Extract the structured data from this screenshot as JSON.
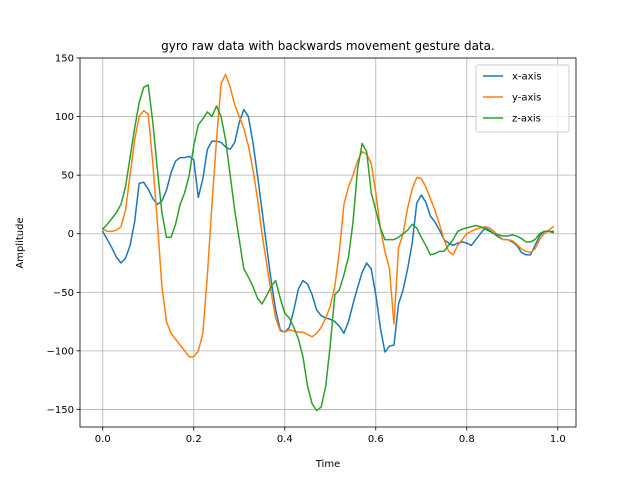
{
  "chart_data": {
    "type": "line",
    "title": "gyro raw data with backwards movement gesture data.",
    "xlabel": "Time",
    "ylabel": "Amplitude",
    "xlim": [
      -0.05,
      1.04
    ],
    "ylim": [
      -165,
      150
    ],
    "xticks": [
      0.0,
      0.2,
      0.4,
      0.6,
      0.8,
      1.0
    ],
    "xtick_labels": [
      "0.0",
      "0.2",
      "0.4",
      "0.6",
      "0.8",
      "1.0"
    ],
    "yticks": [
      -150,
      -100,
      -50,
      0,
      50,
      100,
      150
    ],
    "ytick_labels": [
      "−150",
      "−100",
      "−50",
      "0",
      "50",
      "100",
      "150"
    ],
    "grid": true,
    "legend": "top-right",
    "x": [
      0.0,
      0.01,
      0.02,
      0.03,
      0.04,
      0.05,
      0.06,
      0.07,
      0.08,
      0.09,
      0.1,
      0.11,
      0.12,
      0.13,
      0.14,
      0.15,
      0.16,
      0.17,
      0.18,
      0.19,
      0.2,
      0.21,
      0.22,
      0.23,
      0.24,
      0.25,
      0.26,
      0.27,
      0.28,
      0.29,
      0.3,
      0.31,
      0.32,
      0.33,
      0.34,
      0.35,
      0.36,
      0.37,
      0.38,
      0.39,
      0.4,
      0.41,
      0.42,
      0.43,
      0.44,
      0.45,
      0.46,
      0.47,
      0.48,
      0.49,
      0.5,
      0.51,
      0.52,
      0.53,
      0.54,
      0.55,
      0.56,
      0.57,
      0.58,
      0.59,
      0.6,
      0.61,
      0.62,
      0.63,
      0.64,
      0.65,
      0.66,
      0.67,
      0.68,
      0.69,
      0.7,
      0.71,
      0.72,
      0.73,
      0.74,
      0.75,
      0.76,
      0.77,
      0.78,
      0.79,
      0.8,
      0.81,
      0.82,
      0.83,
      0.84,
      0.85,
      0.86,
      0.87,
      0.88,
      0.89,
      0.9,
      0.91,
      0.92,
      0.93,
      0.94,
      0.95,
      0.96,
      0.97,
      0.98,
      0.99
    ],
    "series": [
      {
        "name": "x-axis",
        "color": "#1f77b4",
        "values": [
          2,
          -5,
          -12,
          -20,
          -25,
          -21,
          -10,
          10,
          43,
          44,
          38,
          30,
          25,
          28,
          37,
          52,
          62,
          65,
          65,
          66,
          63,
          31,
          47,
          72,
          79,
          79,
          78,
          74,
          72,
          78,
          95,
          106,
          100,
          78,
          50,
          20,
          -10,
          -40,
          -65,
          -82,
          -84,
          -80,
          -65,
          -47,
          -40,
          -43,
          -52,
          -65,
          -70,
          -72,
          -73,
          -75,
          -79,
          -85,
          -75,
          -60,
          -46,
          -33,
          -25,
          -30,
          -52,
          -80,
          -101,
          -96,
          -95,
          -60,
          -48,
          -30,
          -8,
          26,
          33,
          27,
          15,
          10,
          3,
          -5,
          -8,
          -10,
          -8,
          -7,
          -8,
          -10,
          -5,
          0,
          5,
          3,
          0,
          -3,
          -5,
          -5,
          -7,
          -10,
          -16,
          -18,
          -18,
          -10,
          -2,
          2,
          2,
          2
        ]
      },
      {
        "name": "y-axis",
        "color": "#ff7f0e",
        "values": [
          4,
          2,
          2,
          3,
          6,
          20,
          50,
          80,
          100,
          105,
          102,
          60,
          10,
          -45,
          -75,
          -85,
          -90,
          -95,
          -100,
          -105,
          -105,
          -100,
          -85,
          -35,
          25,
          80,
          128,
          136,
          125,
          110,
          100,
          90,
          75,
          55,
          30,
          0,
          -25,
          -50,
          -72,
          -83,
          -84,
          -82,
          -83,
          -84,
          -84,
          -86,
          -88,
          -85,
          -80,
          -72,
          -62,
          -45,
          -15,
          25,
          40,
          50,
          62,
          70,
          68,
          60,
          35,
          5,
          -15,
          -30,
          -77,
          -12,
          0,
          22,
          38,
          48,
          47,
          40,
          30,
          20,
          8,
          -5,
          -15,
          -18,
          -10,
          -5,
          0,
          2,
          4,
          5,
          6,
          5,
          2,
          -2,
          -5,
          -5,
          -6,
          -9,
          -13,
          -15,
          -16,
          -13,
          -5,
          0,
          3,
          6
        ]
      },
      {
        "name": "z-axis",
        "color": "#2ca02c",
        "values": [
          4,
          8,
          13,
          18,
          25,
          40,
          65,
          90,
          112,
          125,
          127,
          95,
          55,
          18,
          -3,
          -3,
          8,
          25,
          35,
          50,
          75,
          93,
          98,
          104,
          100,
          109,
          100,
          80,
          50,
          20,
          -5,
          -30,
          -37,
          -45,
          -55,
          -60,
          -53,
          -45,
          -40,
          -55,
          -68,
          -72,
          -80,
          -90,
          -105,
          -130,
          -145,
          -151,
          -148,
          -130,
          -95,
          -52,
          -48,
          -35,
          -20,
          10,
          55,
          77,
          70,
          35,
          20,
          5,
          -5,
          -5,
          -5,
          -3,
          0,
          3,
          8,
          5,
          -3,
          -10,
          -18,
          -17,
          -15,
          -15,
          -10,
          -5,
          2,
          4,
          5,
          6,
          7,
          6,
          4,
          2,
          0,
          -1,
          -2,
          -2,
          -1,
          -2,
          -4,
          -7,
          -7,
          -5,
          0,
          2,
          2,
          1
        ]
      }
    ]
  }
}
